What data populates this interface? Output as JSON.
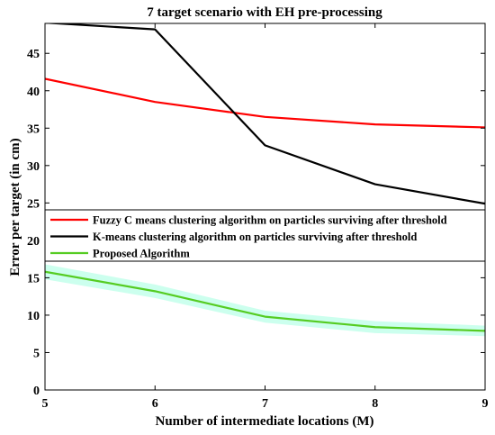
{
  "chart_data": {
    "type": "line",
    "title": "7 target scenario with EH pre-processing",
    "xlabel": "Number of intermediate locations (M)",
    "ylabel": "Error per target (in cm)",
    "xlim": [
      5,
      9
    ],
    "ylim": [
      0,
      49
    ],
    "xticks": [
      "5",
      "6",
      "7",
      "8",
      "9"
    ],
    "yticks": [
      "0",
      "5",
      "10",
      "15",
      "20",
      "25",
      "30",
      "35",
      "40",
      "45"
    ],
    "x": [
      5,
      6,
      7,
      8,
      9
    ],
    "grid": false,
    "legend_position": "middle-left",
    "series": [
      {
        "name": "Fuzzy C means clustering algorithm on particles surviving after threshold",
        "values": [
          41.6,
          38.5,
          36.5,
          35.5,
          35.1
        ],
        "color": "#ff0000"
      },
      {
        "name": "K-means clustering algorithm on particles surviving after threshold",
        "values": [
          49.1,
          48.2,
          32.7,
          27.5,
          24.9
        ],
        "color": "#000000"
      },
      {
        "name": "Proposed Algorithm",
        "values": [
          15.8,
          13.2,
          9.8,
          8.4,
          7.9
        ],
        "color": "#55cc22",
        "band_color": "#ccffee",
        "band": [
          1.0,
          0.9,
          0.8,
          0.8,
          0.7
        ]
      }
    ]
  }
}
